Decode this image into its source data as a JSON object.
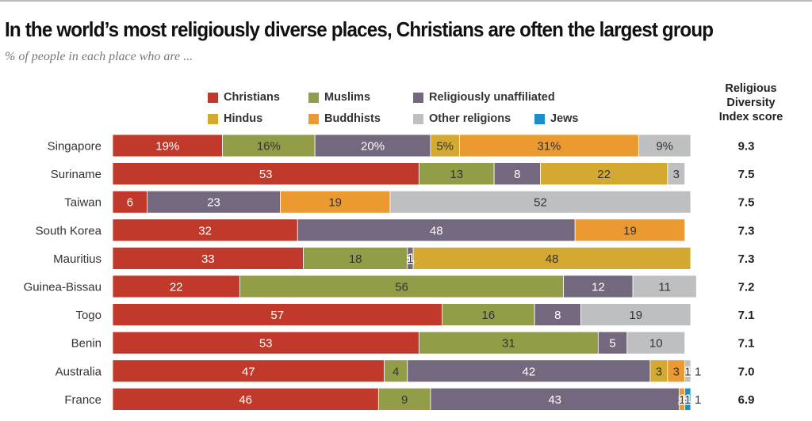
{
  "chart_data": {
    "type": "bar",
    "orientation": "horizontal",
    "stacked": true,
    "title": "In the world’s most religiously diverse places, Christians are often the largest group",
    "subtitle": "% of people in each place who are ...",
    "xlabel": "",
    "ylabel": "",
    "xlim": [
      0,
      100
    ],
    "grid": false,
    "legend_position": "top",
    "categories": [
      "Singapore",
      "Suriname",
      "Taiwan",
      "South Korea",
      "Mauritius",
      "Guinea-Bissau",
      "Togo",
      "Benin",
      "Australia",
      "France"
    ],
    "series": [
      {
        "name": "Christians",
        "color": "#c0392b",
        "label_color": "#ffffff",
        "values": [
          19,
          53,
          6,
          32,
          33,
          22,
          57,
          53,
          47,
          46
        ]
      },
      {
        "name": "Muslims",
        "color": "#939d48",
        "label_color": "#333333",
        "values": [
          16,
          13,
          0,
          0,
          18,
          56,
          16,
          31,
          4,
          9
        ]
      },
      {
        "name": "Religiously unaffiliated",
        "color": "#74687f",
        "label_color": "#ffffff",
        "values": [
          20,
          8,
          23,
          48,
          1,
          12,
          8,
          5,
          42,
          43
        ]
      },
      {
        "name": "Hindus",
        "color": "#d3a931",
        "label_color": "#333333",
        "values": [
          5,
          22,
          0,
          0,
          48,
          0,
          0,
          0,
          3,
          0
        ]
      },
      {
        "name": "Buddhists",
        "color": "#eb9a31",
        "label_color": "#333333",
        "values": [
          31,
          0,
          19,
          19,
          0,
          0,
          0,
          0,
          3,
          1
        ]
      },
      {
        "name": "Other religions",
        "color": "#bdbfc1",
        "label_color": "#333333",
        "values": [
          9,
          3,
          52,
          0,
          0,
          11,
          19,
          10,
          1,
          0
        ]
      },
      {
        "name": "Jews",
        "color": "#1a8fc8",
        "label_color": "#333333",
        "values": [
          0,
          0,
          0,
          0,
          0,
          0,
          0,
          0,
          0,
          1
        ]
      }
    ],
    "value_labels": [
      [
        "19%",
        "16%",
        "20%",
        "5%",
        "31%",
        "9%",
        ""
      ],
      [
        "53",
        "13",
        "8",
        "22",
        "",
        "3",
        ""
      ],
      [
        "6",
        "",
        "23",
        "",
        "19",
        "52",
        ""
      ],
      [
        "32",
        "",
        "48",
        "",
        "19",
        "",
        ""
      ],
      [
        "33",
        "18",
        "1",
        "48",
        "",
        "",
        ""
      ],
      [
        "22",
        "56",
        "12",
        "",
        "",
        "11",
        ""
      ],
      [
        "57",
        "16",
        "8",
        "",
        "",
        "19",
        ""
      ],
      [
        "53",
        "31",
        "5",
        "",
        "",
        "10",
        ""
      ],
      [
        "47",
        "4",
        "42",
        "3",
        "3",
        "1",
        ""
      ],
      [
        "46",
        "9",
        "43",
        "",
        "1",
        "",
        "1"
      ]
    ],
    "outside_labels": [
      {
        "category": "Australia",
        "series": "Other religions",
        "text": "1"
      },
      {
        "category": "France",
        "series": "Jews",
        "text": "1"
      }
    ],
    "score_header": "Religious Diversity Index score",
    "scores": [
      "9.3",
      "7.5",
      "7.5",
      "7.3",
      "7.3",
      "7.2",
      "7.1",
      "7.1",
      "7.0",
      "6.9"
    ]
  },
  "legend": [
    {
      "label": "Christians",
      "color": "#c0392b"
    },
    {
      "label": "Muslims",
      "color": "#939d48"
    },
    {
      "label": "Religiously unaffiliated",
      "color": "#74687f"
    },
    {
      "label": "Hindus",
      "color": "#d3a931"
    },
    {
      "label": "Buddhists",
      "color": "#eb9a31"
    },
    {
      "label": "Other religions",
      "color": "#bdbfc1"
    },
    {
      "label": "Jews",
      "color": "#1a8fc8"
    }
  ],
  "rdi_header_lines": [
    "Religious",
    "Diversity",
    "Index score"
  ]
}
